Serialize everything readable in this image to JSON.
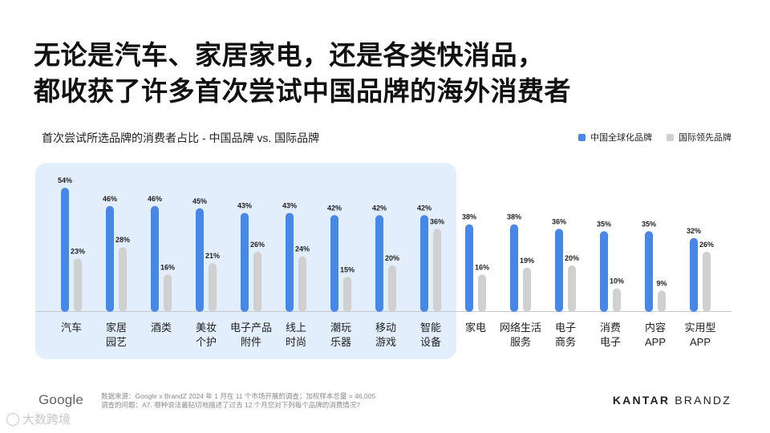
{
  "title_line1": "无论是汽车、家居家电，还是各类快消品，",
  "title_line2": "都收获了许多首次尝试中国品牌的海外消费者",
  "footer": {
    "logo": "Google",
    "note_line1": "数据来源：Google x BrandZ 2024 年 1 月在 11 个市场开展的调查；加权样本总量 = 46,005",
    "note_line2": "调查的问题：A7. 哪种说法最贴切地描述了过去 12 个月您对下列每个品牌的消费情况?",
    "kantar_bold": "KANTAR",
    "kantar_light": "BRANDZ",
    "watermark": "大数跨境"
  },
  "colors": {
    "chinese": "#4a86e8",
    "international": "#d0d0d0",
    "highlight": "#e3eefc"
  },
  "chart_data": {
    "type": "bar",
    "title": "首次尝试所选品牌的消费者占比 - 中国品牌 vs. 国际品牌",
    "legend_position": "top-right",
    "unit": "%",
    "categories": [
      [
        "汽车"
      ],
      [
        "家居",
        "园艺"
      ],
      [
        "酒类"
      ],
      [
        "美妆",
        "个护"
      ],
      [
        "电子产品",
        "附件"
      ],
      [
        "线上",
        "时尚"
      ],
      [
        "潮玩",
        "乐器"
      ],
      [
        "移动",
        "游戏"
      ],
      [
        "智能",
        "设备"
      ],
      [
        "家电"
      ],
      [
        "网络生活",
        "服务"
      ],
      [
        "电子",
        "商务"
      ],
      [
        "消费",
        "电子"
      ],
      [
        "内容",
        "APP"
      ],
      [
        "实用型",
        "APP"
      ]
    ],
    "series": [
      {
        "name": "中国全球化品牌",
        "values": [
          54,
          46,
          46,
          45,
          43,
          43,
          42,
          42,
          42,
          38,
          38,
          36,
          35,
          35,
          32
        ]
      },
      {
        "name": "国际领先品牌",
        "values": [
          23,
          28,
          16,
          21,
          26,
          24,
          15,
          20,
          36,
          16,
          19,
          20,
          10,
          9,
          26
        ]
      }
    ],
    "highlighted_categories": 9
  }
}
